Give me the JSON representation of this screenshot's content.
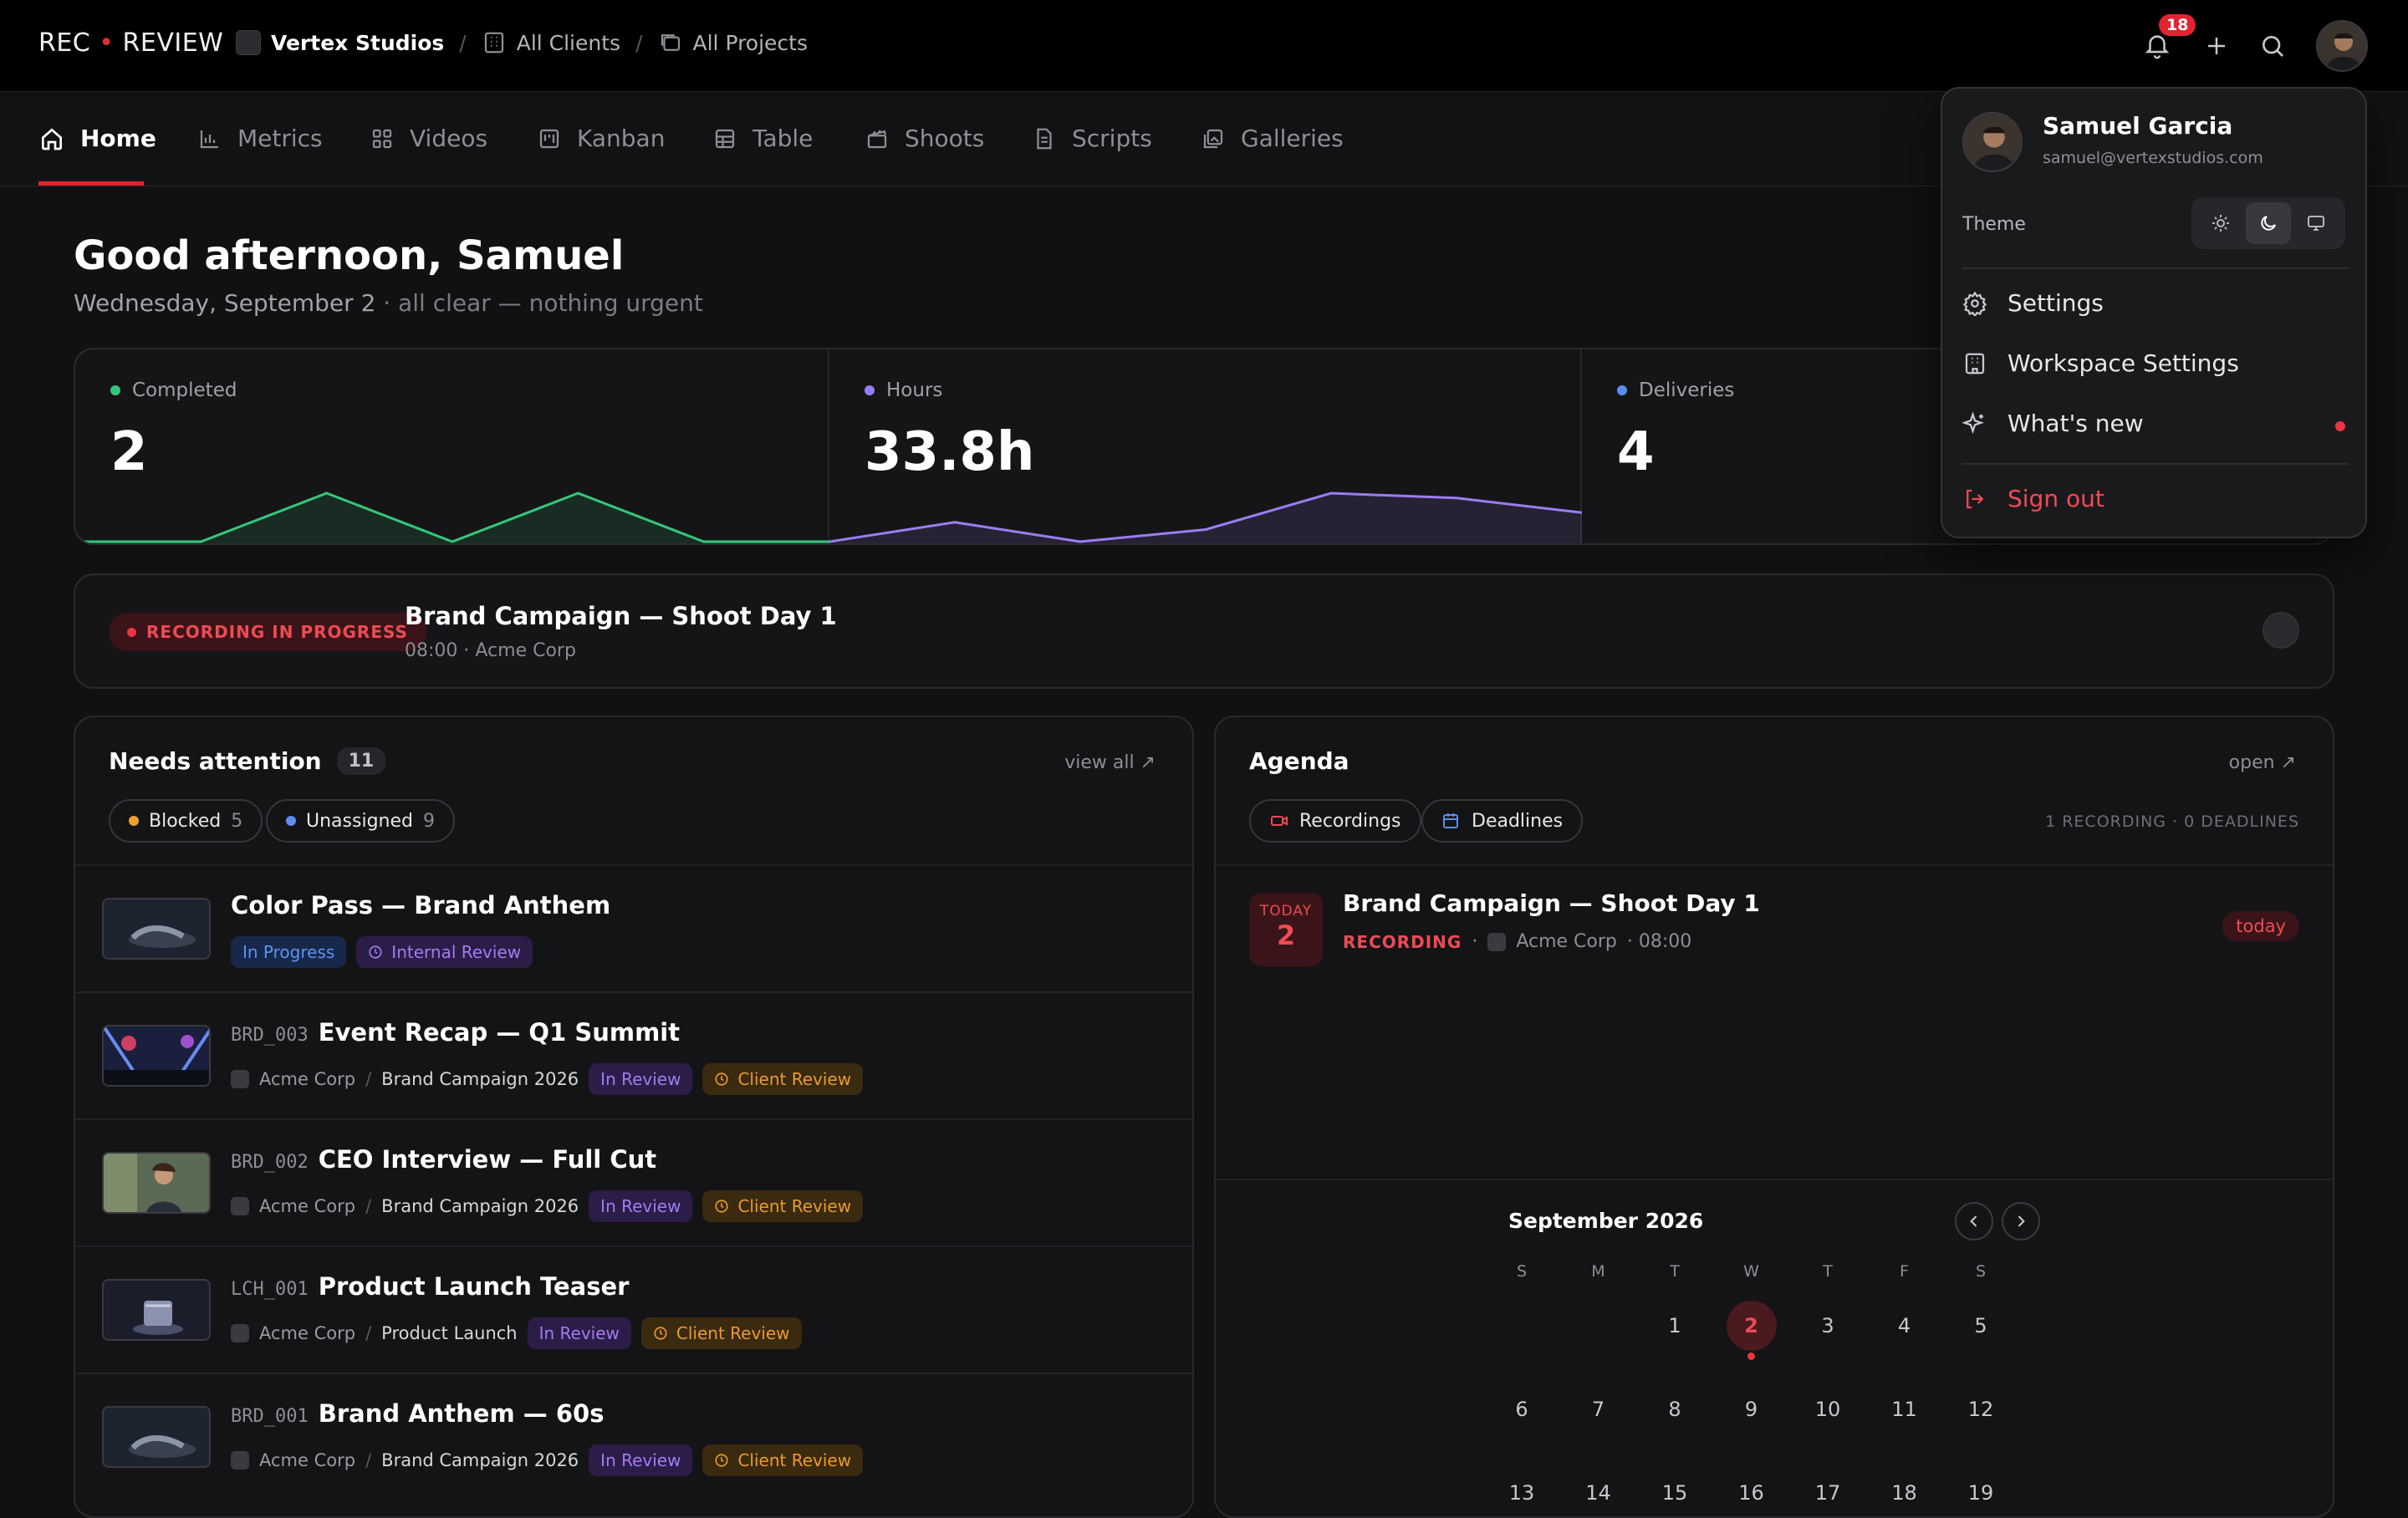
{
  "app": {
    "logo_left": "REC",
    "logo_dot": "•",
    "logo_right": "REVIEW"
  },
  "breadcrumb": {
    "workspace": "Vertex Studios",
    "clients": "All Clients",
    "projects": "All Projects",
    "sep": "/"
  },
  "topbar": {
    "notification_count": "18"
  },
  "tabs": [
    {
      "label": "Home",
      "icon": "home-icon"
    },
    {
      "label": "Metrics",
      "icon": "bar-chart-icon"
    },
    {
      "label": "Videos",
      "icon": "grid-icon"
    },
    {
      "label": "Kanban",
      "icon": "kanban-icon"
    },
    {
      "label": "Table",
      "icon": "table-icon"
    },
    {
      "label": "Shoots",
      "icon": "clapper-icon"
    },
    {
      "label": "Scripts",
      "icon": "document-icon"
    },
    {
      "label": "Galleries",
      "icon": "gallery-icon"
    }
  ],
  "greeting": {
    "title": "Good afternoon, Samuel",
    "date": "Wednesday, September 2",
    "sep": " · ",
    "status": "all clear — nothing urgent"
  },
  "stats": [
    {
      "label": "Completed",
      "value": "2",
      "color": "#34c77b",
      "trend": [
        0,
        0,
        1,
        0,
        1,
        0,
        0
      ]
    },
    {
      "label": "Hours",
      "value": "33.8h",
      "color": "#9b7df2",
      "trend": [
        0,
        0.4,
        0,
        0.25,
        1,
        0.9,
        0.6
      ]
    },
    {
      "label": "Deliveries",
      "value": "4",
      "color": "#5b8ef0"
    }
  ],
  "recording": {
    "badge": "RECORDING IN PROGRESS",
    "title": "Brand Campaign — Shoot Day 1",
    "meta": "08:00 · Acme Corp"
  },
  "attention": {
    "title": "Needs attention",
    "count": "11",
    "link": "view all",
    "filters": [
      {
        "label": "Blocked",
        "count": "5",
        "color": "#f0a030"
      },
      {
        "label": "Unassigned",
        "count": "9",
        "color": "#5b8ef0"
      }
    ],
    "items": [
      {
        "code": "",
        "title": "Color Pass — Brand Anthem",
        "client": "",
        "project": "",
        "status": "In Progress",
        "review": "Internal Review"
      },
      {
        "code": "BRD_003",
        "title": "Event Recap — Q1 Summit",
        "client": "Acme Corp",
        "project": "Brand Campaign 2026",
        "status": "In Review",
        "review": "Client Review"
      },
      {
        "code": "BRD_002",
        "title": "CEO Interview — Full Cut",
        "client": "Acme Corp",
        "project": "Brand Campaign 2026",
        "status": "In Review",
        "review": "Client Review"
      },
      {
        "code": "LCH_001",
        "title": "Product Launch Teaser",
        "client": "Acme Corp",
        "project": "Product Launch",
        "status": "In Review",
        "review": "Client Review"
      },
      {
        "code": "BRD_001",
        "title": "Brand Anthem — 60s",
        "client": "Acme Corp",
        "project": "Brand Campaign 2026",
        "status": "In Review",
        "review": "Client Review"
      }
    ]
  },
  "agenda": {
    "title": "Agenda",
    "link": "open",
    "filters": [
      "Recordings",
      "Deadlines"
    ],
    "summary": "1 RECORDING · 0 DEADLINES",
    "event": {
      "day_label": "TODAY",
      "day": "2",
      "title": "Brand Campaign — Shoot Day 1",
      "type": "RECORDING",
      "client": "Acme Corp",
      "time": "· 08:00",
      "pill": "today"
    },
    "calendar": {
      "month": "September 2026",
      "weekdays": [
        "S",
        "M",
        "T",
        "W",
        "T",
        "F",
        "S"
      ],
      "weeks": [
        [
          "",
          "",
          "1",
          "2",
          "3",
          "4",
          "5"
        ],
        [
          "6",
          "7",
          "8",
          "9",
          "10",
          "11",
          "12"
        ],
        [
          "13",
          "14",
          "15",
          "16",
          "17",
          "18",
          "19"
        ]
      ],
      "selected": "2"
    }
  },
  "user_menu": {
    "name": "Samuel Garcia",
    "email": "samuel@vertexstudios.com",
    "theme_label": "Theme",
    "items": [
      "Settings",
      "Workspace Settings",
      "What's new"
    ],
    "signout": "Sign out"
  }
}
